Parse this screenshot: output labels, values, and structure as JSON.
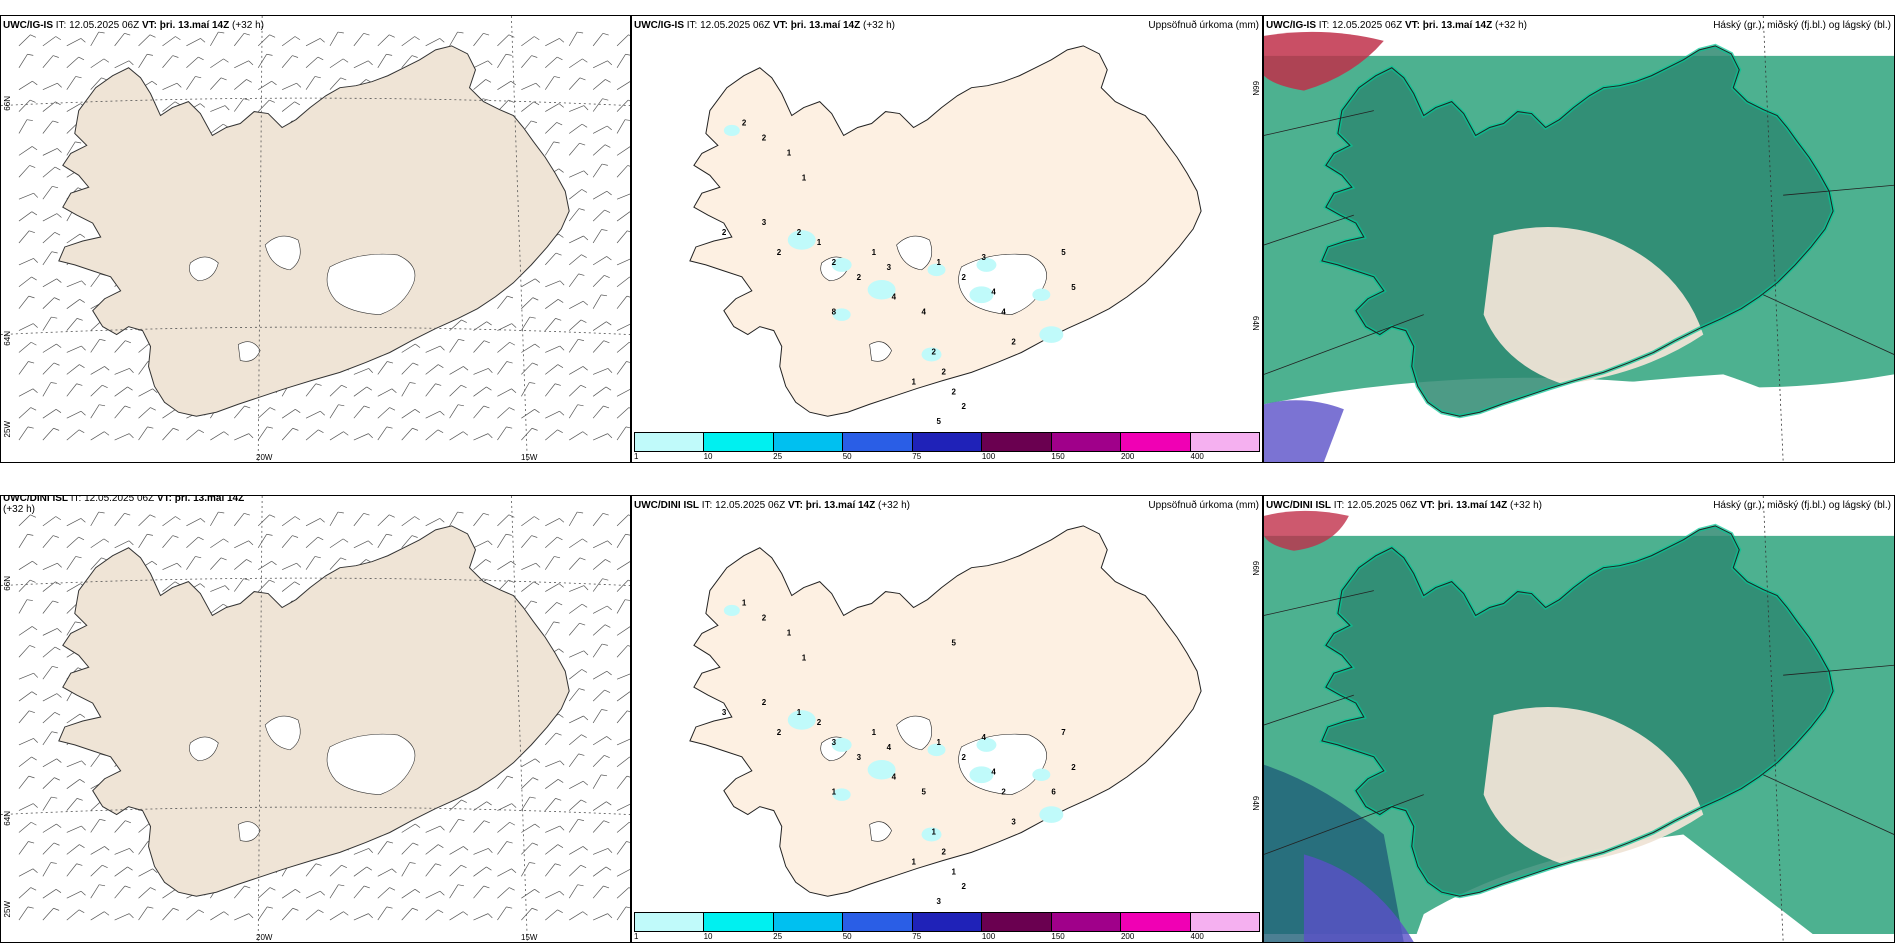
{
  "rows": [
    {
      "model": "UWC/IG-IS",
      "model_short": "UWC/IG-IS",
      "it_label": "IT:",
      "it_value": "12.05.2025 06Z",
      "vt_label": "VT:",
      "vt_value": "þri. 13.maí 14Z",
      "lead": "(+32 h)"
    },
    {
      "model": "UWC/DINI ISL",
      "model_short": "UWC/DINI ISL",
      "it_label": "IT:",
      "it_value": "12.05.2025 06Z",
      "vt_label": "VT:",
      "vt_value": "þri. 13.maí 14Z",
      "lead": "(+32 h)"
    }
  ],
  "precip_title": "Uppsöfnuð úrkoma (mm)",
  "cloud_title": "Háský (gr.), miðský (fj.bl.) og lágský (bl.)",
  "grid_labels": {
    "lat_66": "66N",
    "lat_64": "64N",
    "lon_25": "25W",
    "lon_20": "20W",
    "lon_15": "15W"
  },
  "colorbar": {
    "ticks": [
      "1",
      "10",
      "25",
      "50",
      "75",
      "100",
      "150",
      "200",
      "400"
    ],
    "colors": [
      "#c0fafa",
      "#00f0f0",
      "#00c0f0",
      "#2a5ee6",
      "#1f22b8",
      "#6a0050",
      "#a0008a",
      "#f000b4",
      "#f5b0f0"
    ]
  },
  "precip_numbers": {
    "row1": [
      "2",
      "2",
      "1",
      "1",
      "2",
      "3",
      "2",
      "2",
      "1",
      "2",
      "2",
      "1",
      "3",
      "4",
      "4",
      "1",
      "2",
      "3",
      "4",
      "4",
      "2",
      "2",
      "2",
      "2",
      "2",
      "5",
      "1",
      "8",
      "5",
      "5"
    ],
    "row2": [
      "1",
      "2",
      "1",
      "1",
      "3",
      "2",
      "2",
      "1",
      "2",
      "3",
      "3",
      "1",
      "4",
      "4",
      "5",
      "1",
      "2",
      "4",
      "4",
      "2",
      "3",
      "1",
      "2",
      "1",
      "2",
      "3",
      "1",
      "1",
      "7",
      "2",
      "6",
      "5"
    ]
  },
  "colors": {
    "land": "#efe4d6",
    "land_precip": "#fdf0e2",
    "cloud_green": "#3aa884",
    "cloud_bright": "#00c896",
    "cloud_dark": "#2e8a72",
    "high_cloud_red": "#c0304a",
    "high_cloud_blue": "#5a50c8"
  }
}
